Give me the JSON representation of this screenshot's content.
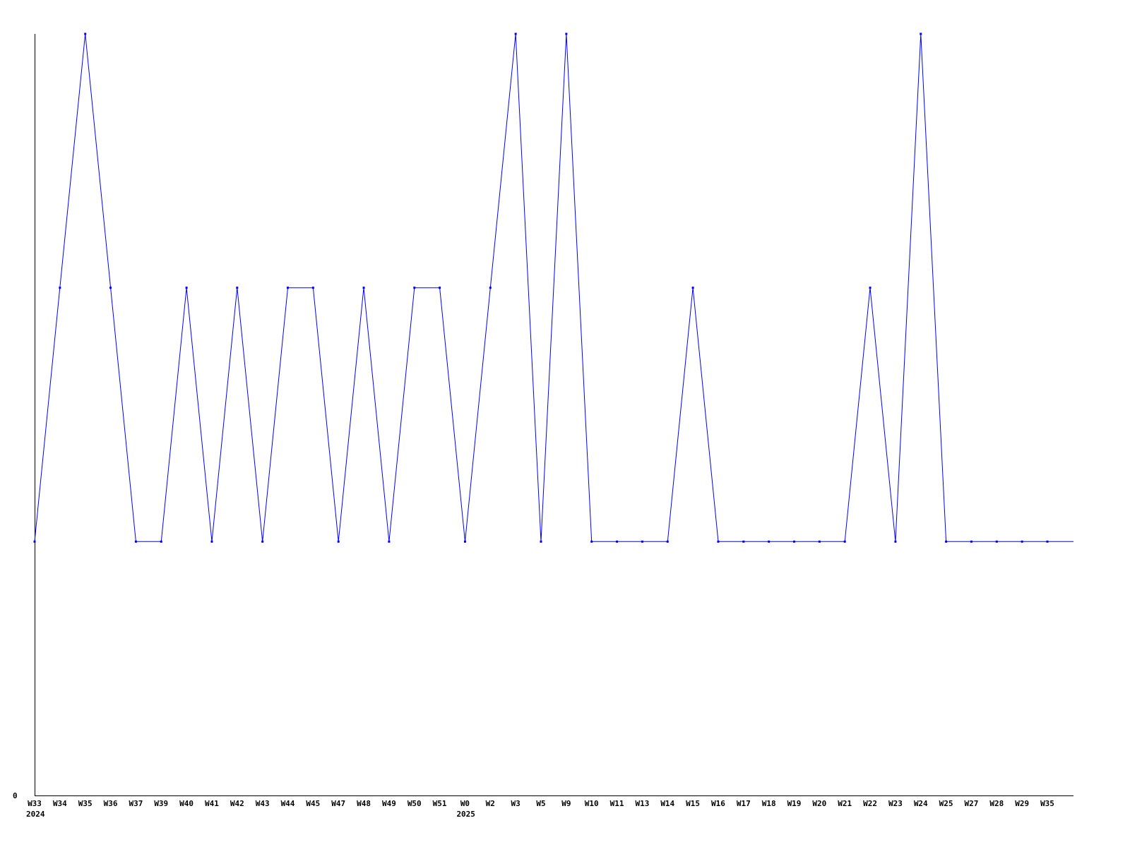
{
  "chart_data": {
    "type": "line",
    "title": "",
    "xlabel": "",
    "ylabel": "",
    "y_tick_labels": [
      "0"
    ],
    "ylim": [
      0,
      3
    ],
    "grid": false,
    "line_color": "#0000ff",
    "categories": [
      "W33",
      "W34",
      "W35",
      "W36",
      "W37",
      "W39",
      "W40",
      "W41",
      "W42",
      "W43",
      "W44",
      "W45",
      "W47",
      "W48",
      "W49",
      "W50",
      "W51",
      "W0",
      "W2",
      "W3",
      "W5",
      "W9",
      "W10",
      "W11",
      "W13",
      "W14",
      "W15",
      "W16",
      "W17",
      "W18",
      "W19",
      "W20",
      "W21",
      "W22",
      "W23",
      "W24",
      "W25",
      "W27",
      "W28",
      "W29",
      "W35"
    ],
    "year_labels": [
      {
        "at": "W33",
        "index": 0,
        "label": "2024"
      },
      {
        "at": "W0",
        "index": 17,
        "label": "2025"
      }
    ],
    "series": [
      {
        "values": [
          1,
          2,
          3,
          2,
          1,
          1,
          2,
          1,
          2,
          1,
          2,
          2,
          1,
          2,
          1,
          2,
          2,
          1,
          2,
          3,
          1,
          3,
          1,
          1,
          1,
          1,
          2,
          1,
          1,
          1,
          1,
          1,
          1,
          2,
          1,
          3,
          1,
          1,
          1,
          1,
          1
        ]
      }
    ]
  }
}
